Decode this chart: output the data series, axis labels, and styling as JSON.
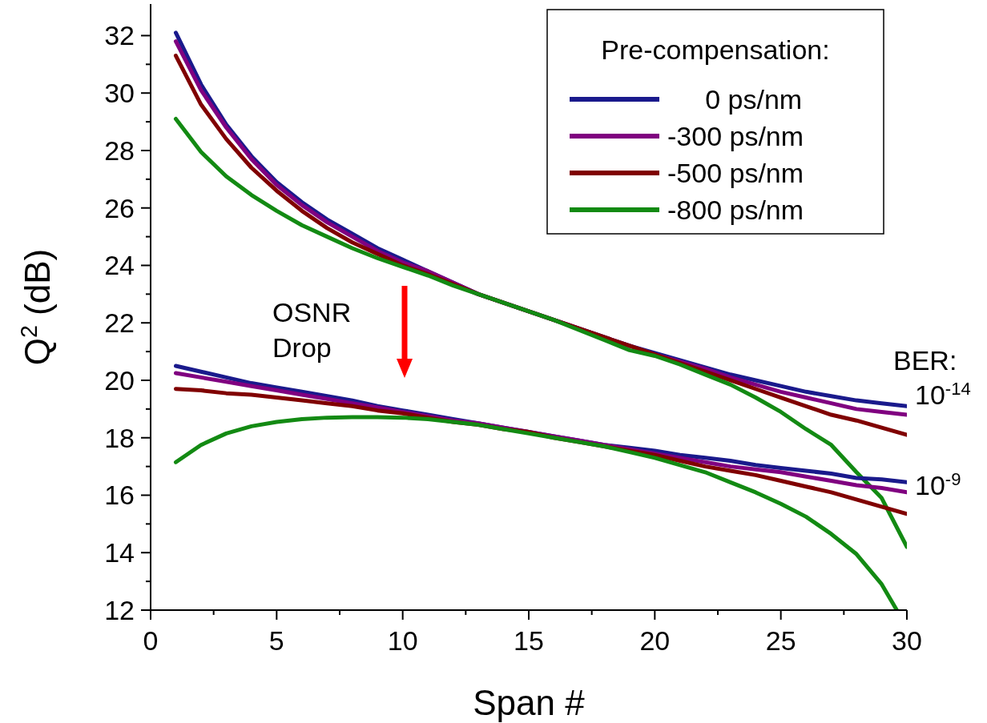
{
  "chart_data": {
    "type": "line",
    "xlabel": "Span #",
    "ylabel": "Q$^{2}$ (dB)",
    "legend_title": "Pre-compensation:",
    "legend": "top right",
    "line_style": "solid",
    "marker": "none",
    "x": [
      1,
      2,
      3,
      4,
      5,
      6,
      7,
      8,
      9,
      10,
      11,
      12,
      13,
      14,
      15,
      16,
      17,
      18,
      19,
      20,
      21,
      22,
      23,
      24,
      25,
      26,
      27,
      28,
      29,
      30
    ],
    "xlim": [
      0,
      30
    ],
    "xticks": [
      0,
      {
        "value": 2.5,
        "label": null
      },
      5,
      {
        "value": 7.5,
        "label": null
      },
      10,
      {
        "value": 12.5,
        "label": null
      },
      15,
      {
        "value": 17.5,
        "label": null
      },
      20,
      {
        "value": 22.5,
        "label": null
      },
      25,
      {
        "value": 27.5,
        "label": null
      },
      30
    ],
    "ylim": [
      12,
      33.1
    ],
    "yticks": [
      12,
      {
        "value": 13,
        "label": null
      },
      14,
      {
        "value": 15,
        "label": null
      },
      16,
      {
        "value": 17,
        "label": null
      },
      18,
      {
        "value": 19,
        "label": null
      },
      20,
      {
        "value": 21,
        "label": null
      },
      22,
      {
        "value": 23,
        "label": null
      },
      24,
      {
        "value": 25,
        "label": null
      },
      26,
      {
        "value": 27,
        "label": null
      },
      28,
      {
        "value": 29,
        "label": null
      },
      30,
      {
        "value": 31,
        "label": null
      },
      32
    ],
    "series": [
      {
        "name": "     0 ps/nm",
        "color": "#1a1a8c",
        "values": [
          32.1,
          30.3,
          28.9,
          27.8,
          26.9,
          26.2,
          25.6,
          25.1,
          24.6,
          24.2,
          23.8,
          23.4,
          23.0,
          22.7,
          22.4,
          22.1,
          21.8,
          21.5,
          21.2,
          20.95,
          20.7,
          20.45,
          20.2,
          20.0,
          19.8,
          19.6,
          19.45,
          19.3,
          19.2,
          19.1
        ]
      },
      {
        "name": "-300 ps/nm",
        "color": "#800080",
        "values": [
          31.8,
          30.1,
          28.8,
          27.7,
          26.8,
          26.1,
          25.5,
          25.0,
          24.5,
          24.1,
          23.8,
          23.4,
          23.0,
          22.7,
          22.4,
          22.1,
          21.8,
          21.5,
          21.2,
          20.9,
          20.65,
          20.4,
          20.1,
          19.85,
          19.6,
          19.4,
          19.2,
          19.0,
          18.9,
          18.8
        ]
      },
      {
        "name": "-500 ps/nm",
        "color": "#800000",
        "values": [
          31.3,
          29.6,
          28.4,
          27.4,
          26.6,
          25.9,
          25.3,
          24.8,
          24.4,
          24.0,
          23.7,
          23.35,
          23.0,
          22.7,
          22.4,
          22.1,
          21.8,
          21.5,
          21.2,
          20.9,
          20.6,
          20.3,
          20.0,
          19.7,
          19.4,
          19.1,
          18.8,
          18.6,
          18.35,
          18.1
        ]
      },
      {
        "name": "-800 ps/nm",
        "color": "#138a13",
        "values": [
          29.1,
          27.95,
          27.1,
          26.45,
          25.9,
          25.4,
          25.0,
          24.6,
          24.25,
          23.95,
          23.65,
          23.3,
          23.0,
          22.7,
          22.4,
          22.1,
          21.75,
          21.4,
          21.05,
          20.85,
          20.55,
          20.2,
          19.85,
          19.4,
          18.9,
          18.3,
          17.75,
          16.8,
          15.9,
          14.2
        ]
      },
      {
        "color": "#1a1a8c",
        "values": [
          20.5,
          20.3,
          20.1,
          19.9,
          19.75,
          19.6,
          19.45,
          19.3,
          19.1,
          18.95,
          18.8,
          18.65,
          18.5,
          18.35,
          18.2,
          18.05,
          17.9,
          17.75,
          17.65,
          17.55,
          17.4,
          17.3,
          17.2,
          17.05,
          16.95,
          16.85,
          16.75,
          16.6,
          16.55,
          16.45
        ]
      },
      {
        "color": "#800080",
        "values": [
          20.25,
          20.1,
          19.95,
          19.8,
          19.65,
          19.5,
          19.35,
          19.2,
          19.05,
          18.9,
          18.75,
          18.6,
          18.5,
          18.35,
          18.2,
          18.05,
          17.9,
          17.75,
          17.6,
          17.45,
          17.3,
          17.15,
          17.0,
          16.9,
          16.8,
          16.65,
          16.5,
          16.35,
          16.25,
          16.1
        ]
      },
      {
        "color": "#800000",
        "values": [
          19.7,
          19.65,
          19.55,
          19.5,
          19.4,
          19.3,
          19.2,
          19.1,
          18.95,
          18.85,
          18.7,
          18.55,
          18.45,
          18.3,
          18.2,
          18.0,
          17.85,
          17.7,
          17.55,
          17.4,
          17.2,
          17.0,
          16.85,
          16.7,
          16.5,
          16.3,
          16.1,
          15.85,
          15.6,
          15.35
        ]
      },
      {
        "color": "#138a13",
        "x": [
          1,
          2,
          3,
          4,
          5,
          6,
          7,
          8,
          9,
          10,
          11,
          12,
          13,
          14,
          15,
          16,
          17,
          18,
          19,
          20,
          21,
          22,
          23,
          24,
          25,
          26,
          27,
          28,
          29,
          29.6
        ],
        "values": [
          17.15,
          17.75,
          18.15,
          18.4,
          18.55,
          18.65,
          18.7,
          18.72,
          18.72,
          18.7,
          18.65,
          18.55,
          18.45,
          18.3,
          18.15,
          18.0,
          17.85,
          17.7,
          17.5,
          17.3,
          17.05,
          16.8,
          16.45,
          16.1,
          15.7,
          15.25,
          14.65,
          13.95,
          12.9,
          12.0
        ]
      }
    ],
    "annotations": [
      "OSNR Drop",
      "BER:",
      "10$^{-14}$",
      "10$^{-9}$"
    ]
  }
}
